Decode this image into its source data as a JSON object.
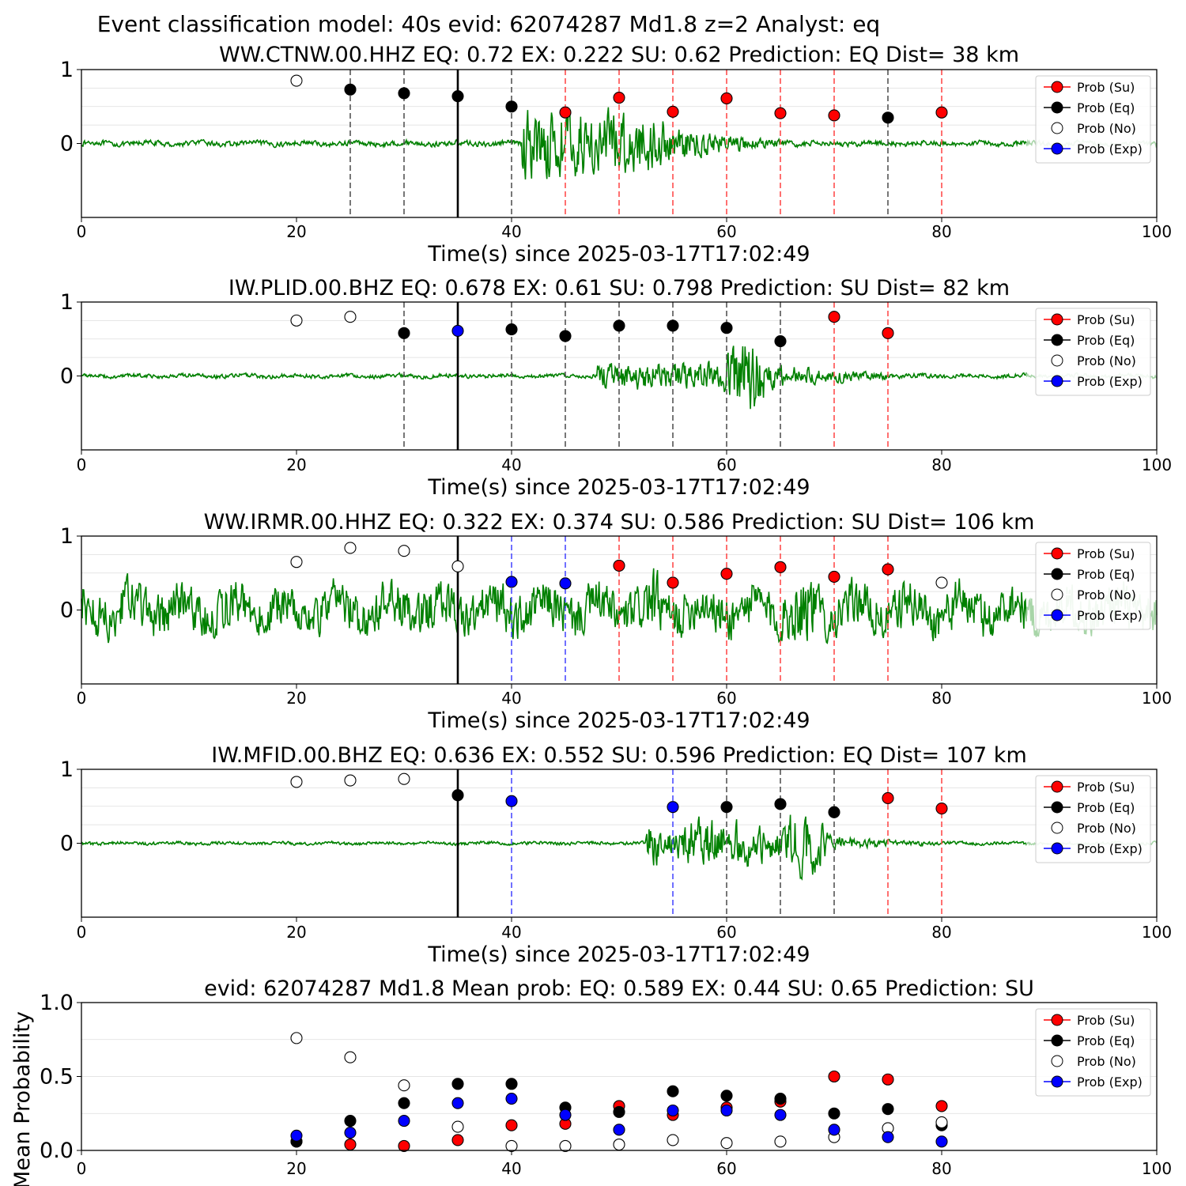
{
  "figure": {
    "suptitle": "Event classification model: 40s evid: 62074287 Md1.8 z=2 Analyst: eq"
  },
  "colors": {
    "waveform": "#008000",
    "su": "#ff0000",
    "eq": "#000000",
    "no": "#ffffff",
    "exp": "#0000ff",
    "dash_eq": "#555555",
    "dash_su": "#ff4d4d",
    "dash_exp": "#4d4dff"
  },
  "legend_labels": [
    "Prob (Su)",
    "Prob (Eq)",
    "Prob (No)",
    "Prob (Exp)"
  ],
  "chart_data": [
    {
      "type": "scatter",
      "title": "WW.CTNW.00.HHZ   EQ: 0.72  EX: 0.222  SU: 0.62   Prediction: EQ    Dist= 38 km",
      "xlabel": "Time(s) since 2025-03-17T17:02:49",
      "xlim": [
        0,
        100
      ],
      "xticks": [
        "0",
        "20",
        "40",
        "60",
        "80",
        "100"
      ],
      "yticks": [
        "1",
        "0"
      ],
      "legend": "upper right",
      "marker_line": 35,
      "waveform": {
        "onset": 41,
        "end_t": 52,
        "amp_noise": 0.05,
        "amp_event": 0.65,
        "decay": 18,
        "bursts": [],
        "color_tail": 88
      },
      "points": [
        {
          "t": 20,
          "p": 0.85,
          "cls": "no"
        },
        {
          "t": 25,
          "p": 0.73,
          "cls": "eq"
        },
        {
          "t": 30,
          "p": 0.68,
          "cls": "eq"
        },
        {
          "t": 35,
          "p": 0.64,
          "cls": "eq"
        },
        {
          "t": 40,
          "p": 0.5,
          "cls": "eq"
        },
        {
          "t": 45,
          "p": 0.42,
          "cls": "su"
        },
        {
          "t": 50,
          "p": 0.62,
          "cls": "su"
        },
        {
          "t": 55,
          "p": 0.43,
          "cls": "su"
        },
        {
          "t": 60,
          "p": 0.61,
          "cls": "su"
        },
        {
          "t": 65,
          "p": 0.41,
          "cls": "su"
        },
        {
          "t": 70,
          "p": 0.38,
          "cls": "su"
        },
        {
          "t": 75,
          "p": 0.35,
          "cls": "eq"
        },
        {
          "t": 80,
          "p": 0.42,
          "cls": "su"
        }
      ]
    },
    {
      "type": "scatter",
      "title": "IW.PLID.00.BHZ   EQ: 0.678  EX: 0.61  SU: 0.798   Prediction: SU    Dist= 82 km",
      "xlabel": "Time(s) since 2025-03-17T17:02:49",
      "xlim": [
        0,
        100
      ],
      "xticks": [
        "0",
        "20",
        "40",
        "60",
        "80",
        "100"
      ],
      "yticks": [
        "1",
        "0"
      ],
      "legend": "upper right",
      "marker_line": 35,
      "waveform": {
        "onset": 48,
        "end_t": 64,
        "amp_noise": 0.04,
        "amp_event": 0.25,
        "decay": 25,
        "bursts": [
          [
            62,
            0.9
          ]
        ],
        "color_tail": 88
      },
      "points": [
        {
          "t": 20,
          "p": 0.75,
          "cls": "no"
        },
        {
          "t": 25,
          "p": 0.8,
          "cls": "no"
        },
        {
          "t": 30,
          "p": 0.58,
          "cls": "eq"
        },
        {
          "t": 35,
          "p": 0.61,
          "cls": "exp"
        },
        {
          "t": 40,
          "p": 0.63,
          "cls": "eq"
        },
        {
          "t": 45,
          "p": 0.54,
          "cls": "eq"
        },
        {
          "t": 50,
          "p": 0.68,
          "cls": "eq"
        },
        {
          "t": 55,
          "p": 0.68,
          "cls": "eq"
        },
        {
          "t": 60,
          "p": 0.65,
          "cls": "eq"
        },
        {
          "t": 65,
          "p": 0.47,
          "cls": "eq"
        },
        {
          "t": 70,
          "p": 0.8,
          "cls": "su"
        },
        {
          "t": 75,
          "p": 0.58,
          "cls": "su"
        }
      ]
    },
    {
      "type": "scatter",
      "title": "WW.IRMR.00.HHZ   EQ: 0.322  EX: 0.374  SU: 0.586   Prediction: SU    Dist= 106 km",
      "xlabel": "Time(s) since 2025-03-17T17:02:49",
      "xlim": [
        0,
        100
      ],
      "xticks": [
        "0",
        "20",
        "40",
        "60",
        "80",
        "100"
      ],
      "yticks": [
        "1",
        "0"
      ],
      "legend": "upper right",
      "marker_line": 35,
      "waveform": {
        "onset": 0,
        "end_t": 100,
        "amp_noise": 0.45,
        "amp_event": 0.2,
        "decay": 100,
        "bursts": [
          [
            67,
            0.9
          ],
          [
            53,
            0.7
          ]
        ],
        "color_tail": 88
      },
      "points": [
        {
          "t": 20,
          "p": 0.65,
          "cls": "no"
        },
        {
          "t": 25,
          "p": 0.84,
          "cls": "no"
        },
        {
          "t": 30,
          "p": 0.8,
          "cls": "no"
        },
        {
          "t": 35,
          "p": 0.59,
          "cls": "no"
        },
        {
          "t": 40,
          "p": 0.38,
          "cls": "exp"
        },
        {
          "t": 45,
          "p": 0.36,
          "cls": "exp"
        },
        {
          "t": 50,
          "p": 0.6,
          "cls": "su"
        },
        {
          "t": 55,
          "p": 0.37,
          "cls": "su"
        },
        {
          "t": 60,
          "p": 0.49,
          "cls": "su"
        },
        {
          "t": 65,
          "p": 0.58,
          "cls": "su"
        },
        {
          "t": 70,
          "p": 0.45,
          "cls": "su"
        },
        {
          "t": 75,
          "p": 0.55,
          "cls": "su"
        },
        {
          "t": 80,
          "p": 0.37,
          "cls": "no"
        }
      ]
    },
    {
      "type": "scatter",
      "title": "IW.MFID.00.BHZ   EQ: 0.636  EX: 0.552  SU: 0.596   Prediction: EQ    Dist= 107 km",
      "xlabel": "Time(s) since 2025-03-17T17:02:49",
      "xlim": [
        0,
        100
      ],
      "xticks": [
        "0",
        "20",
        "40",
        "60",
        "80",
        "100"
      ],
      "yticks": [
        "1",
        "0"
      ],
      "legend": "upper right",
      "marker_line": 35,
      "waveform": {
        "onset": 52.5,
        "end_t": 62,
        "amp_noise": 0.03,
        "amp_event": 0.45,
        "decay": 20,
        "bursts": [
          [
            67,
            0.85
          ]
        ],
        "color_tail": 88
      },
      "points": [
        {
          "t": 20,
          "p": 0.83,
          "cls": "no"
        },
        {
          "t": 25,
          "p": 0.85,
          "cls": "no"
        },
        {
          "t": 30,
          "p": 0.87,
          "cls": "no"
        },
        {
          "t": 35,
          "p": 0.65,
          "cls": "eq"
        },
        {
          "t": 40,
          "p": 0.57,
          "cls": "exp"
        },
        {
          "t": 55,
          "p": 0.49,
          "cls": "exp"
        },
        {
          "t": 60,
          "p": 0.49,
          "cls": "eq"
        },
        {
          "t": 65,
          "p": 0.53,
          "cls": "eq"
        },
        {
          "t": 70,
          "p": 0.42,
          "cls": "eq"
        },
        {
          "t": 75,
          "p": 0.61,
          "cls": "su"
        },
        {
          "t": 80,
          "p": 0.47,
          "cls": "su"
        }
      ]
    },
    {
      "type": "scatter",
      "title": "evid: 62074287  Md1.8   Mean prob:   EQ: 0.589  EX: 0.44  SU: 0.65   Prediction: SU",
      "ylabel": "Mean Probability",
      "xlim": [
        0,
        100
      ],
      "ylim": [
        0,
        1
      ],
      "xticks": [
        "0",
        "20",
        "40",
        "60",
        "80",
        "100"
      ],
      "yticks": [
        "0.0",
        "0.5",
        "1.0"
      ],
      "legend": "upper right",
      "x": [
        20,
        25,
        30,
        35,
        40,
        45,
        50,
        55,
        60,
        65,
        70,
        75,
        80
      ],
      "series": [
        {
          "name": "Prob (Su)",
          "cls": "su",
          "values": [
            0.06,
            0.04,
            0.03,
            0.07,
            0.17,
            0.18,
            0.3,
            0.24,
            0.29,
            0.33,
            0.5,
            0.48,
            0.3
          ]
        },
        {
          "name": "Prob (Eq)",
          "cls": "eq",
          "values": [
            0.06,
            0.2,
            0.32,
            0.45,
            0.45,
            0.29,
            0.26,
            0.4,
            0.37,
            0.35,
            0.25,
            0.28,
            0.17
          ]
        },
        {
          "name": "Prob (No)",
          "cls": "no",
          "values": [
            0.76,
            0.63,
            0.44,
            0.16,
            0.03,
            0.03,
            0.04,
            0.07,
            0.05,
            0.06,
            0.09,
            0.15,
            0.19
          ]
        },
        {
          "name": "Prob (Exp)",
          "cls": "exp",
          "values": [
            0.1,
            0.12,
            0.2,
            0.32,
            0.35,
            0.24,
            0.14,
            0.27,
            0.27,
            0.24,
            0.14,
            0.09,
            0.06
          ]
        }
      ]
    }
  ]
}
